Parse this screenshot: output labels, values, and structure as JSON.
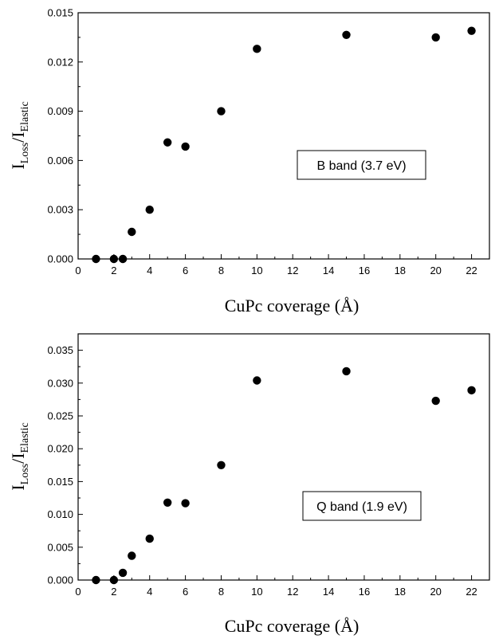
{
  "chart_data": [
    {
      "type": "scatter",
      "xlabel": "CuPc coverage (Å)",
      "ylabel": {
        "main": "I",
        "sub1": "Loss",
        "slash": "/I",
        "sub2": "Elastic"
      },
      "annotation": "B band (3.7 eV)",
      "xlim": [
        0,
        23
      ],
      "ylim": [
        0,
        0.015
      ],
      "x_ticks": [
        0,
        2,
        4,
        6,
        8,
        10,
        12,
        14,
        16,
        18,
        20,
        22
      ],
      "y_ticks": [
        0.0,
        0.003,
        0.006,
        0.009,
        0.012,
        0.015
      ],
      "y_tick_labels": [
        "0.000",
        "0.003",
        "0.006",
        "0.009",
        "0.012",
        "0.015"
      ],
      "points": [
        {
          "x": 1,
          "y": 0.0
        },
        {
          "x": 2,
          "y": 0.0
        },
        {
          "x": 2.5,
          "y": 0.0
        },
        {
          "x": 3,
          "y": 0.00165
        },
        {
          "x": 4,
          "y": 0.003
        },
        {
          "x": 5,
          "y": 0.0071
        },
        {
          "x": 6,
          "y": 0.00685
        },
        {
          "x": 8,
          "y": 0.009
        },
        {
          "x": 10,
          "y": 0.0128
        },
        {
          "x": 15,
          "y": 0.01365
        },
        {
          "x": 20,
          "y": 0.0135
        },
        {
          "x": 22,
          "y": 0.0139
        }
      ]
    },
    {
      "type": "scatter",
      "xlabel": "CuPc coverage (Å)",
      "ylabel": {
        "main": "I",
        "sub1": "Loss",
        "slash": "/I",
        "sub2": "Elastic"
      },
      "annotation": "Q band (1.9 eV)",
      "xlim": [
        0,
        23
      ],
      "ylim": [
        0,
        0.0375
      ],
      "x_ticks": [
        0,
        2,
        4,
        6,
        8,
        10,
        12,
        14,
        16,
        18,
        20,
        22
      ],
      "y_ticks": [
        0.0,
        0.005,
        0.01,
        0.015,
        0.02,
        0.025,
        0.03,
        0.035
      ],
      "y_tick_labels": [
        "0.000",
        "0.005",
        "0.010",
        "0.015",
        "0.020",
        "0.025",
        "0.030",
        "0.035"
      ],
      "points": [
        {
          "x": 1,
          "y": 0.0
        },
        {
          "x": 2,
          "y": 0.0
        },
        {
          "x": 2.5,
          "y": 0.0011
        },
        {
          "x": 3,
          "y": 0.0037
        },
        {
          "x": 4,
          "y": 0.0063
        },
        {
          "x": 5,
          "y": 0.0118
        },
        {
          "x": 6,
          "y": 0.0117
        },
        {
          "x": 8,
          "y": 0.0175
        },
        {
          "x": 10,
          "y": 0.0304
        },
        {
          "x": 15,
          "y": 0.0318
        },
        {
          "x": 20,
          "y": 0.0273
        },
        {
          "x": 22,
          "y": 0.0289
        }
      ]
    }
  ]
}
